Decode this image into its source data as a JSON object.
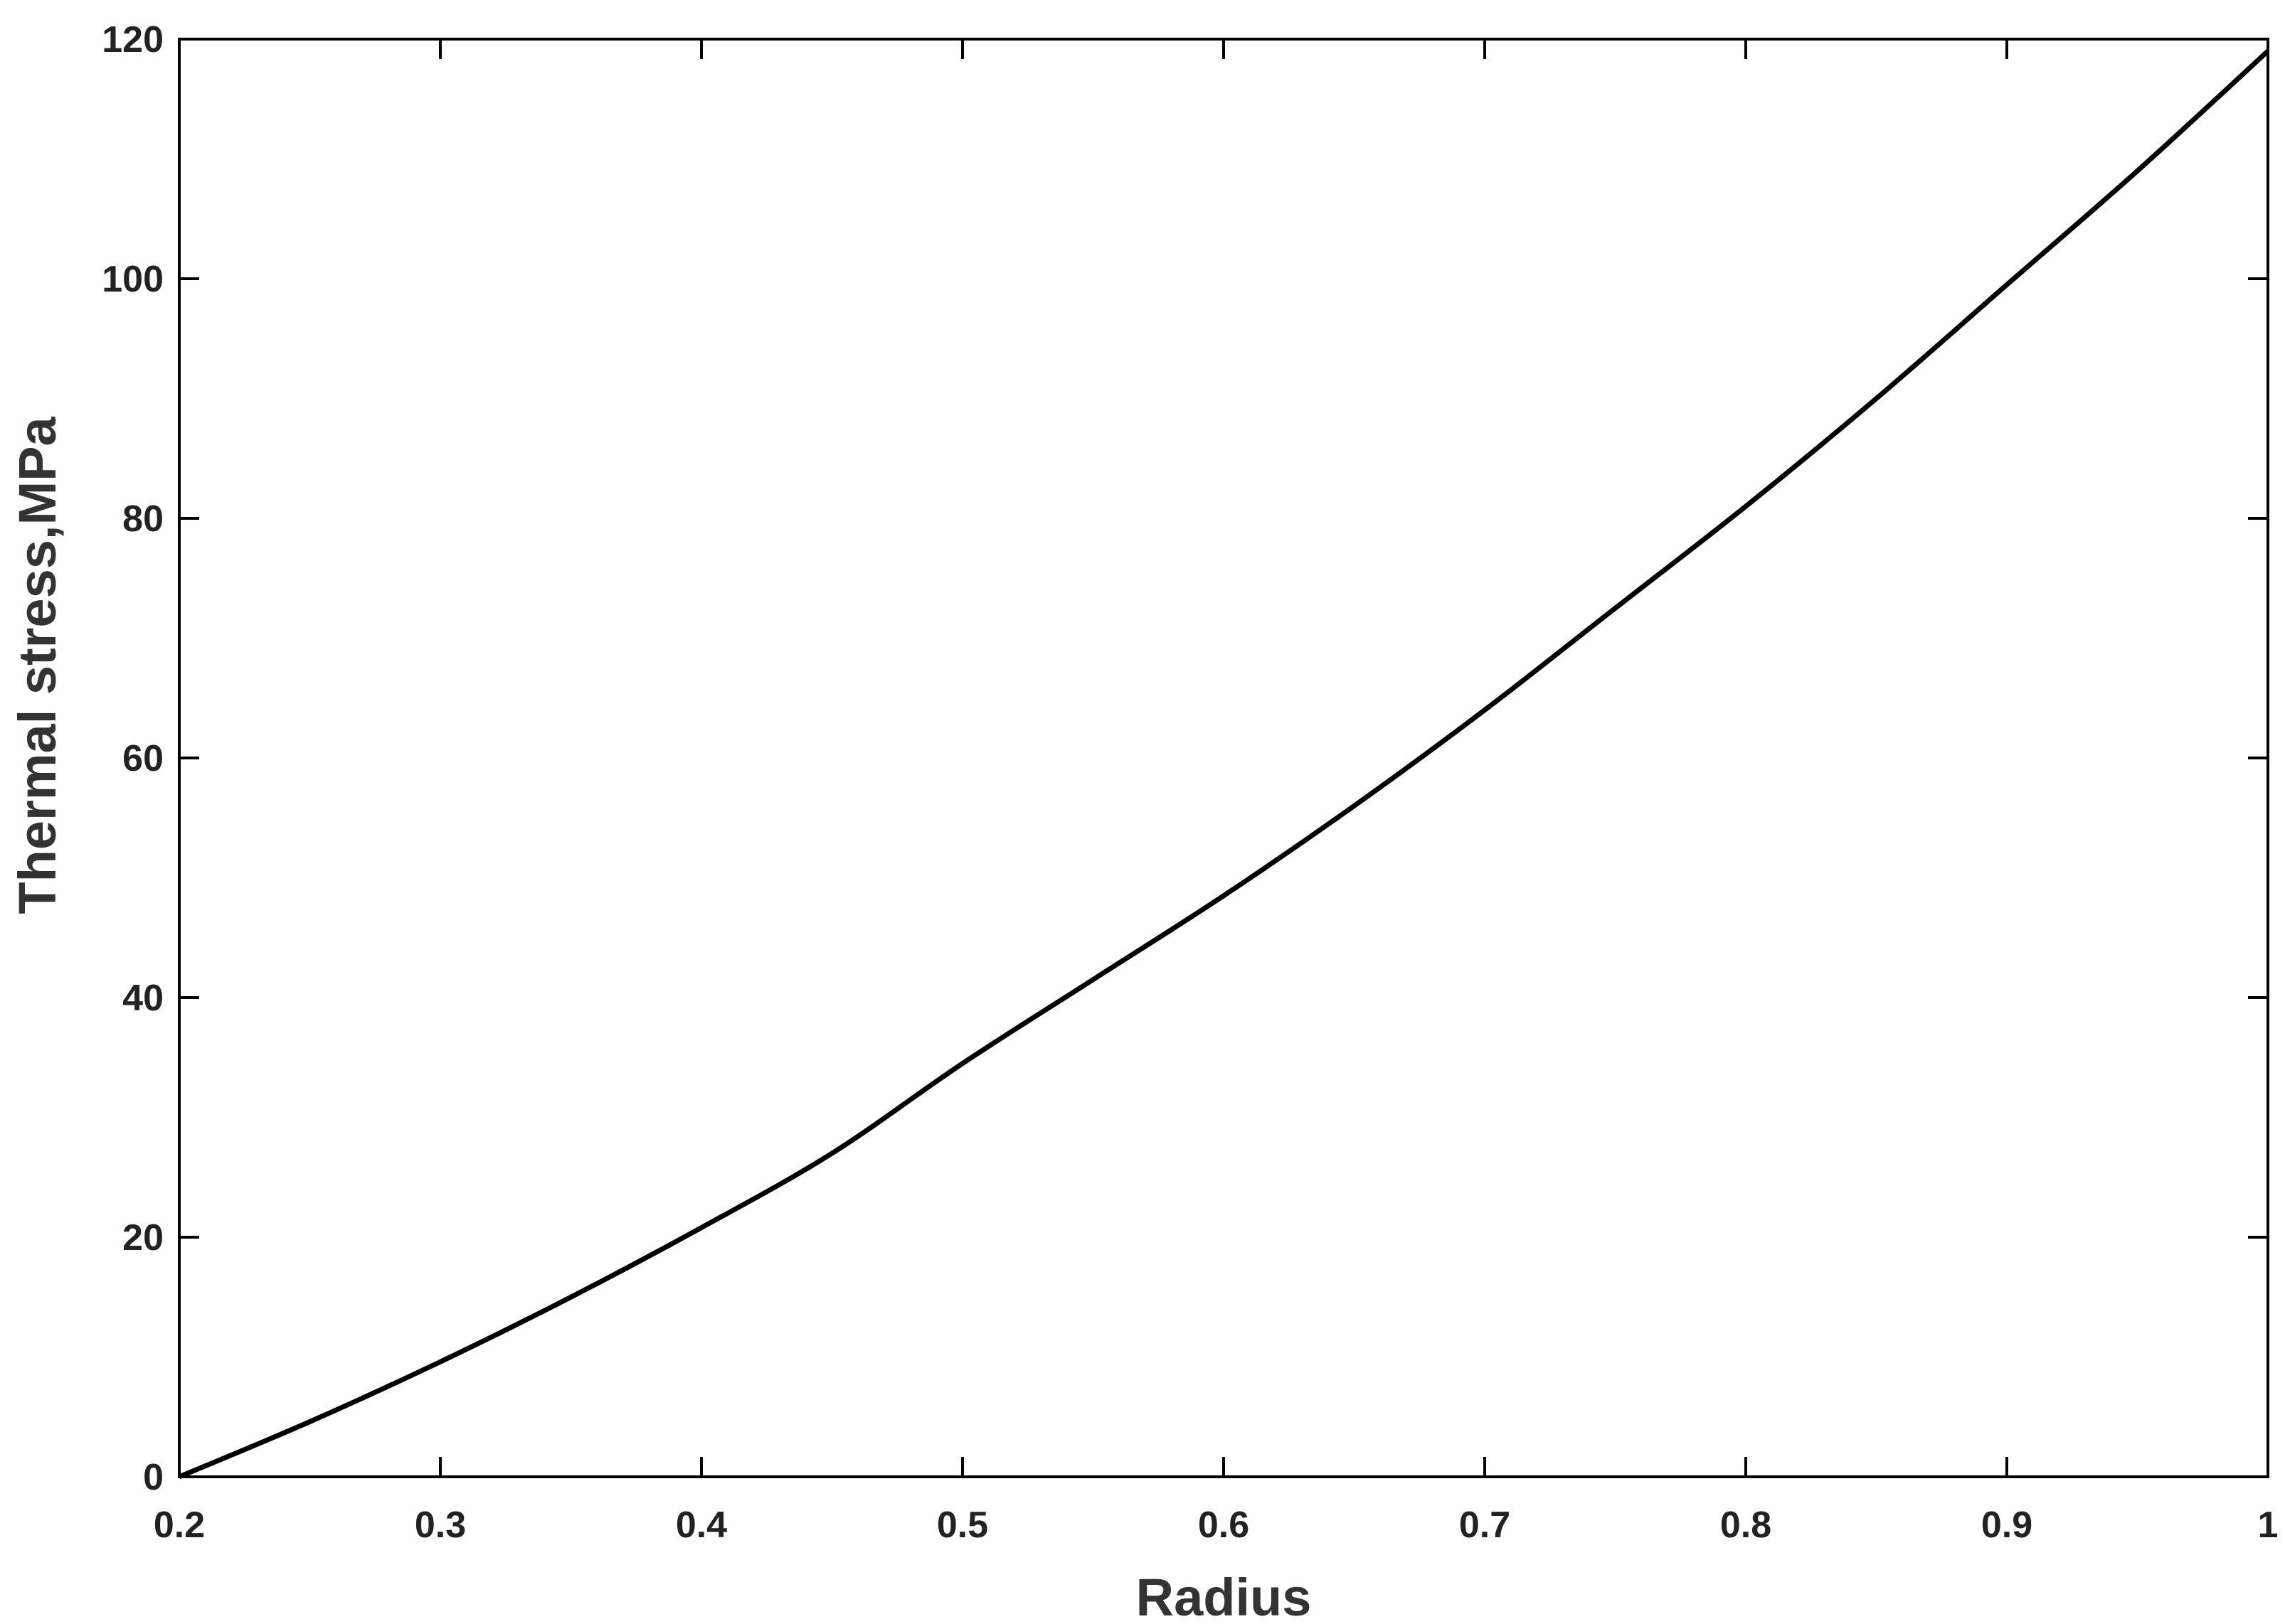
{
  "chart_data": {
    "type": "line",
    "xlabel": "Radius",
    "ylabel": "Thermal stress,MPa",
    "xlim": [
      0.2,
      1
    ],
    "ylim": [
      0,
      120
    ],
    "xticks": [
      "0.2",
      "0.3",
      "0.4",
      "0.5",
      "0.6",
      "0.7",
      "0.8",
      "0.9",
      "1"
    ],
    "yticks": [
      "0",
      "20",
      "40",
      "60",
      "80",
      "100",
      "120"
    ],
    "grid": false,
    "line_color": "#000000",
    "series": [
      {
        "x": [
          0.2,
          0.25,
          0.3,
          0.35,
          0.4,
          0.45,
          0.5,
          0.55,
          0.6,
          0.65,
          0.7,
          0.75,
          0.8,
          0.85,
          0.9,
          0.95,
          1.0
        ],
        "values": [
          0,
          4.6,
          9.6,
          15.0,
          20.8,
          27.0,
          34.5,
          41.5,
          48.5,
          56.0,
          64.0,
          72.5,
          81.0,
          90.0,
          99.5,
          109.0,
          119.0
        ]
      }
    ]
  }
}
